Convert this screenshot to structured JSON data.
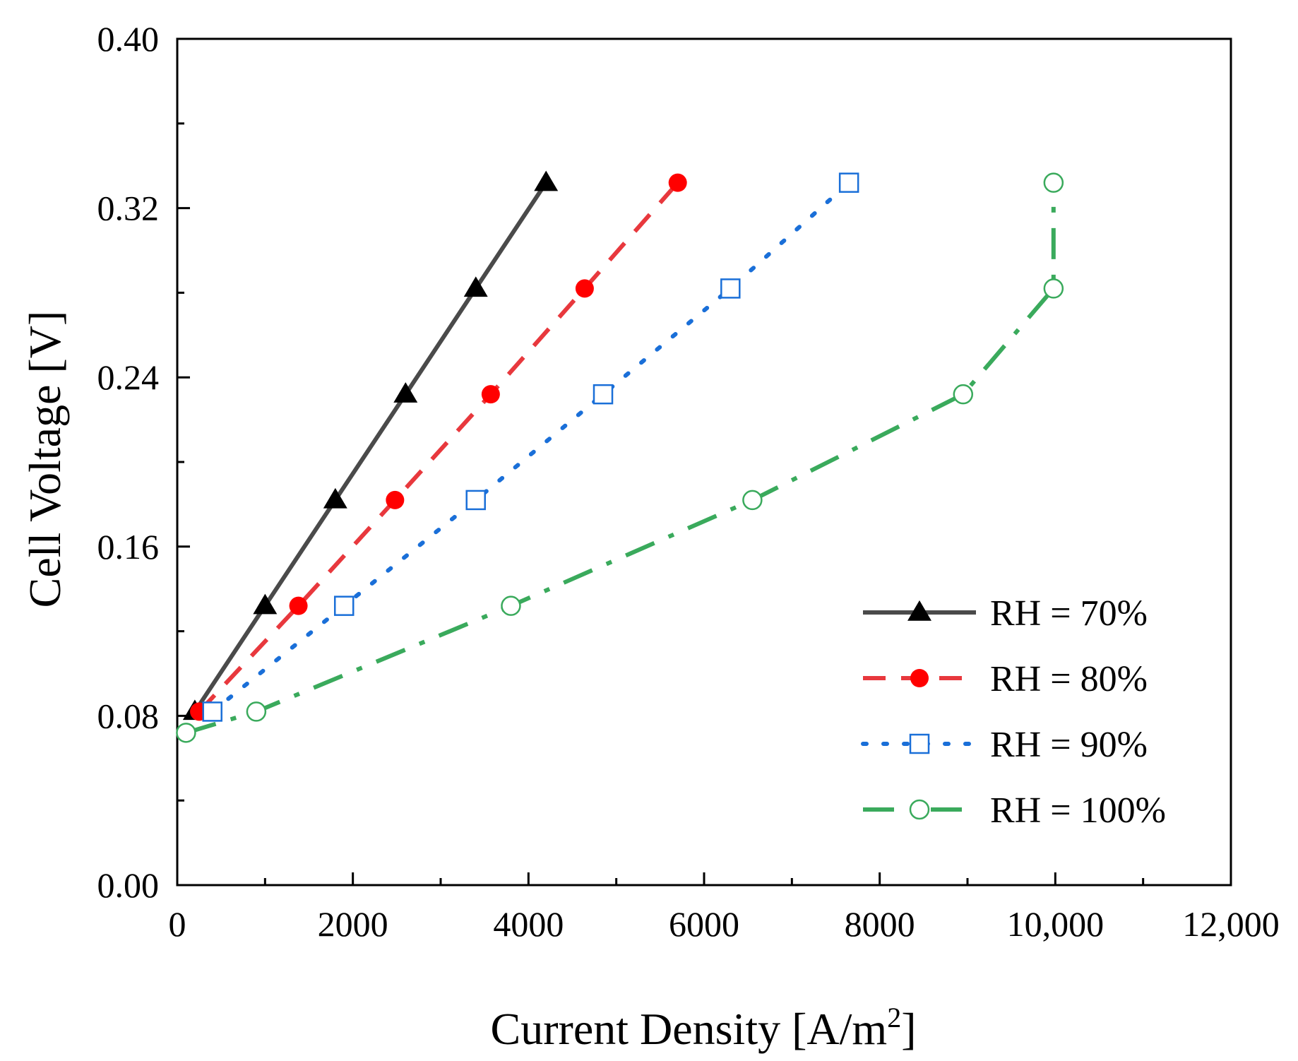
{
  "chart_data": {
    "type": "line",
    "title": "",
    "xlabel": "Current Density [A/m",
    "xlabel_sup": "2",
    "xlabel_end": "]",
    "ylabel": "Cell Voltage [V]",
    "xlim": [
      0,
      12000
    ],
    "ylim": [
      0,
      0.4
    ],
    "xticks": [
      0,
      2000,
      4000,
      6000,
      8000,
      10000,
      12000
    ],
    "xtick_labels": [
      "0",
      "2000",
      "4000",
      "6000",
      "8000",
      "10,000",
      "12,000"
    ],
    "yticks": [
      0,
      0.08,
      0.16,
      0.24,
      0.32,
      0.4
    ],
    "ytick_labels": [
      "0.00",
      "0.08",
      "0.16",
      "0.24",
      "0.32",
      "0.40"
    ],
    "grid": false,
    "legend_position": "bottom-right",
    "series": [
      {
        "name": "RH = 70%",
        "color": "#4a4a4a",
        "line_style": "solid",
        "marker": "filled-triangle",
        "x": [
          200,
          1000,
          1800,
          2600,
          3400,
          4200
        ],
        "y": [
          0.082,
          0.132,
          0.182,
          0.232,
          0.282,
          0.332
        ]
      },
      {
        "name": "RH = 80%",
        "color": "#e8383d",
        "marker_color": "#ff0000",
        "line_style": "dashed",
        "marker": "filled-circle",
        "x": [
          250,
          1380,
          2480,
          3570,
          4640,
          5700
        ],
        "y": [
          0.082,
          0.132,
          0.182,
          0.232,
          0.282,
          0.332
        ]
      },
      {
        "name": "RH = 90%",
        "color": "#1a6fd8",
        "line_style": "dotted",
        "marker": "open-square",
        "x": [
          400,
          1900,
          3400,
          4850,
          6300,
          7650
        ],
        "y": [
          0.082,
          0.132,
          0.182,
          0.232,
          0.282,
          0.332
        ]
      },
      {
        "name": "RH = 100%",
        "color": "#3aaa5c",
        "line_style": "dashdot",
        "marker": "open-circle",
        "x": [
          100,
          900,
          3800,
          6550,
          8950,
          9980,
          9980
        ],
        "y": [
          0.072,
          0.082,
          0.132,
          0.182,
          0.232,
          0.282,
          0.332
        ]
      }
    ]
  }
}
